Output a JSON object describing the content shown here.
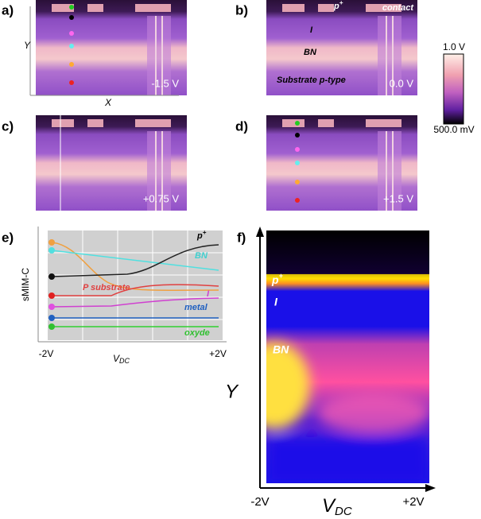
{
  "panels": {
    "a": {
      "label": "a)",
      "y_axis": "Y",
      "x_axis": "X",
      "voltage": "-1.5 V"
    },
    "b": {
      "label": "b)",
      "p_plus": {
        "base": "p",
        "sup": "+"
      },
      "contact": "contact",
      "i": "I",
      "bn": "BN",
      "substrate": "Substrate p-type",
      "voltage": "0.0 V"
    },
    "colorbar": {
      "max": "1.0 V",
      "min": "500.0 mV"
    },
    "c": {
      "label": "c)",
      "voltage": "+0.75 V"
    },
    "d": {
      "label": "d)",
      "voltage": "+1.5 V"
    },
    "e": {
      "label": "e)",
      "y_axis": "sMIM-C",
      "x_min": "-2V",
      "x_axis": {
        "base": "V",
        "sub": "DC"
      },
      "x_max": "+2V",
      "curves": {
        "p_plus": {
          "base": "p",
          "sup": "+"
        },
        "bn": "BN",
        "p_substrate": "P substrate",
        "i": "I",
        "metal": "metal",
        "oxyde": "oxyde"
      }
    },
    "f": {
      "label": "f)",
      "p_plus": {
        "base": "p",
        "sup": "+"
      },
      "i": "I",
      "bn": "BN",
      "y_axis": "Y",
      "x_min": "-2V",
      "x_axis": {
        "base": "V",
        "sub": "DC"
      },
      "x_max": "+2V"
    }
  }
}
